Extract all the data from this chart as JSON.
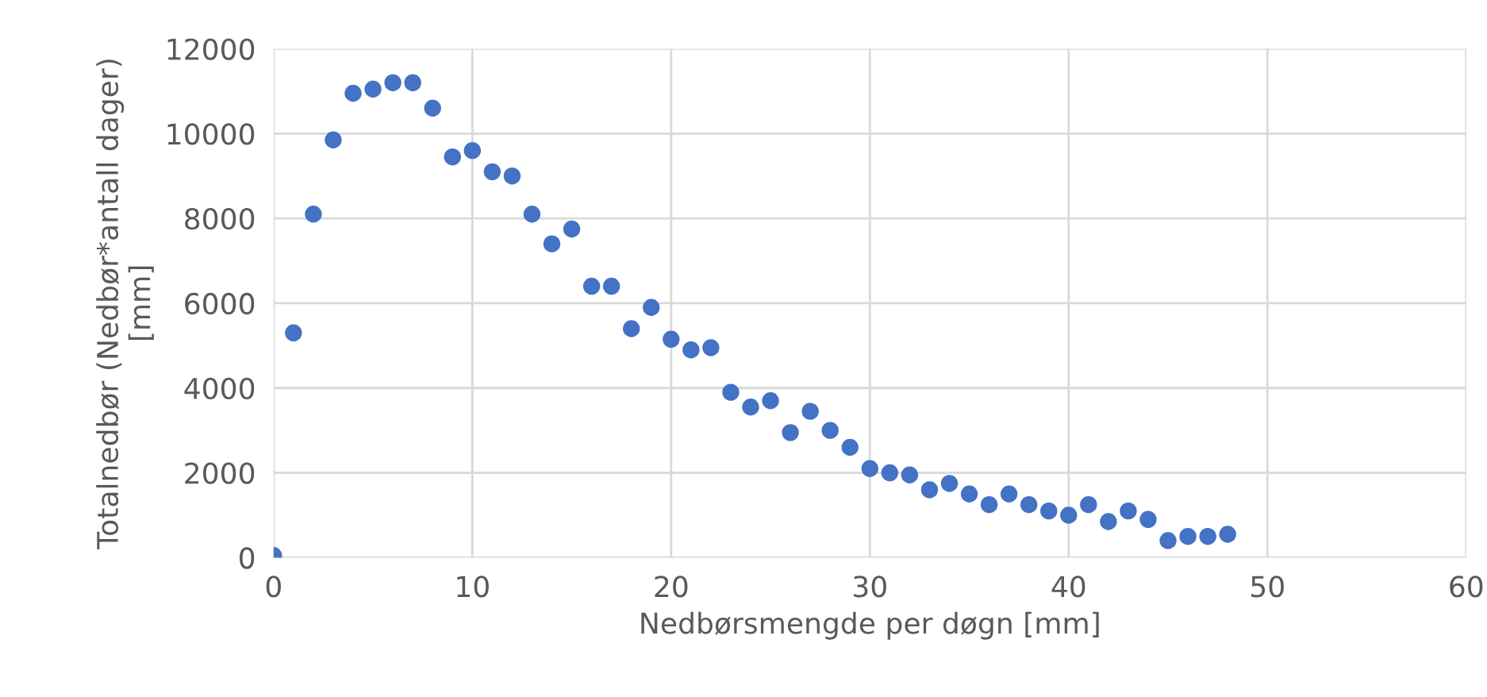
{
  "chart_data": {
    "type": "scatter",
    "xlabel": "Nedbørsmengde per døgn [mm]",
    "ylabel": "Totalnedbør (Nedbør*antall dager)\n[mm]",
    "x": [
      0,
      1,
      2,
      3,
      4,
      5,
      6,
      7,
      8,
      9,
      10,
      11,
      12,
      13,
      14,
      15,
      16,
      17,
      18,
      19,
      20,
      21,
      22,
      23,
      24,
      25,
      26,
      27,
      28,
      29,
      30,
      31,
      32,
      33,
      34,
      35,
      36,
      37,
      38,
      39,
      40,
      41,
      42,
      43,
      44,
      45,
      46,
      47,
      48
    ],
    "series": [
      {
        "color": "#4472c4",
        "values": [
          50,
          5300,
          8100,
          9850,
          10950,
          11050,
          11200,
          11200,
          10600,
          9450,
          9600,
          9100,
          9000,
          8100,
          7400,
          7750,
          6400,
          6400,
          5400,
          5900,
          5150,
          4900,
          4950,
          3900,
          3550,
          3700,
          2950,
          3450,
          3000,
          2600,
          2100,
          2000,
          1950,
          1600,
          1750,
          1500,
          1250,
          1500,
          1250,
          1100,
          1000,
          1250,
          850,
          1100,
          900,
          400,
          500,
          500,
          550
        ]
      }
    ],
    "xlim": [
      0,
      60
    ],
    "xticks": [
      0,
      10,
      20,
      30,
      40,
      50,
      60
    ],
    "ylim": [
      0,
      12000
    ],
    "yticks": [
      0,
      2000,
      4000,
      6000,
      8000,
      10000,
      12000
    ],
    "grid": true,
    "marker": "circle"
  }
}
